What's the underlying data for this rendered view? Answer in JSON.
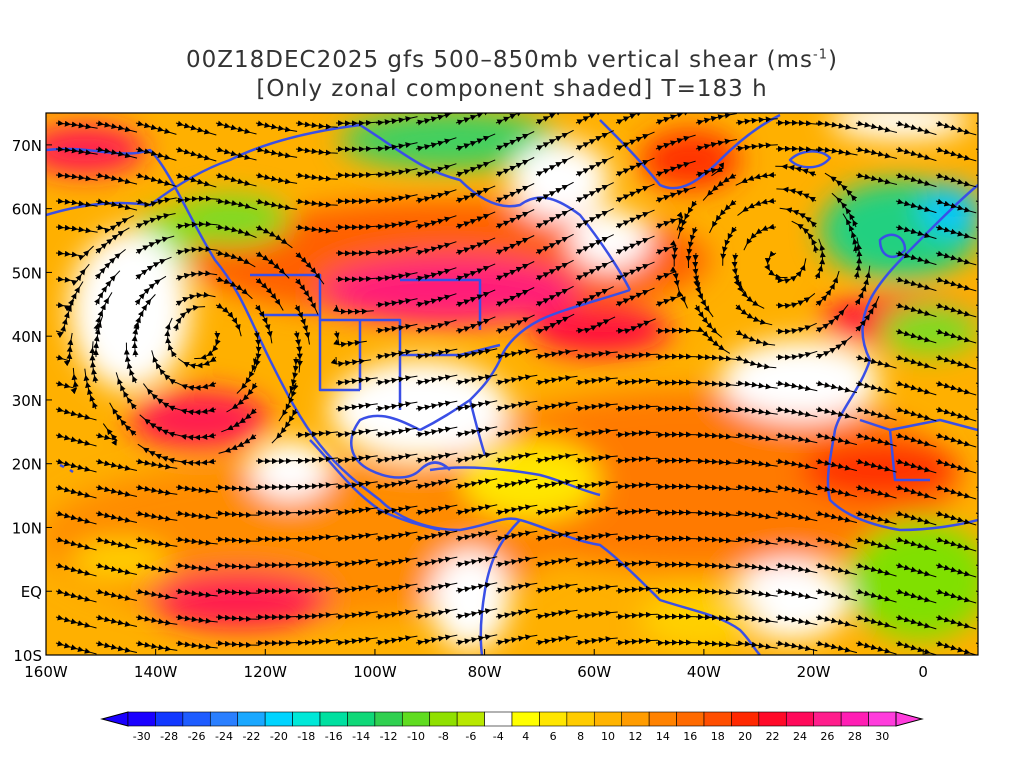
{
  "title": {
    "line1_main": "00Z18DEC2025 gfs 500–850mb vertical shear (ms",
    "line1_sup": "-1",
    "line1_end": ")",
    "line2": "[Only zonal component shaded] T=183 h"
  },
  "map": {
    "lon_range": [
      -160,
      10
    ],
    "lat_range": [
      -10,
      75
    ],
    "x_tick_labels": [
      {
        "lon": -160,
        "label": "160W"
      },
      {
        "lon": -140,
        "label": "140W"
      },
      {
        "lon": -120,
        "label": "120W"
      },
      {
        "lon": -100,
        "label": "100W"
      },
      {
        "lon": -80,
        "label": "80W"
      },
      {
        "lon": -60,
        "label": "60W"
      },
      {
        "lon": -40,
        "label": "40W"
      },
      {
        "lon": -20,
        "label": "20W"
      },
      {
        "lon": 0,
        "label": "0"
      }
    ],
    "y_tick_labels": [
      {
        "lat": 70,
        "label": "70N"
      },
      {
        "lat": 60,
        "label": "60N"
      },
      {
        "lat": 50,
        "label": "50N"
      },
      {
        "lat": 40,
        "label": "40N"
      },
      {
        "lat": 30,
        "label": "30N"
      },
      {
        "lat": 20,
        "label": "20N"
      },
      {
        "lat": 10,
        "label": "10N"
      },
      {
        "lat": 0,
        "label": "EQ"
      },
      {
        "lat": -10,
        "label": "10S"
      }
    ],
    "coastline_color": "#3a4fe6",
    "streamline_color": "#000000"
  },
  "colorbar": {
    "levels": [
      "-30",
      "-28",
      "-26",
      "-24",
      "-22",
      "-20",
      "-18",
      "-16",
      "-14",
      "-12",
      "-10",
      "-8",
      "-6",
      "-4",
      "4",
      "6",
      "8",
      "10",
      "12",
      "14",
      "16",
      "18",
      "20",
      "22",
      "24",
      "26",
      "28",
      "30"
    ],
    "colors": [
      "#1a00ff",
      "#1238ff",
      "#1e5cff",
      "#2a7fff",
      "#1aa8ff",
      "#00d4ff",
      "#00e8d8",
      "#00e0a0",
      "#10d878",
      "#30d050",
      "#60dc20",
      "#90e000",
      "#b8e800",
      "#ffffff",
      "#ffff00",
      "#ffe600",
      "#ffcc00",
      "#ffb400",
      "#ff9c00",
      "#ff8200",
      "#ff6a00",
      "#ff4e00",
      "#ff2800",
      "#ff0a28",
      "#ff0a5a",
      "#ff1e8c",
      "#ff1eb4",
      "#ff3cdc"
    ],
    "low_end_color": "#1a00ff",
    "high_end_color": "#ff3cdc"
  }
}
